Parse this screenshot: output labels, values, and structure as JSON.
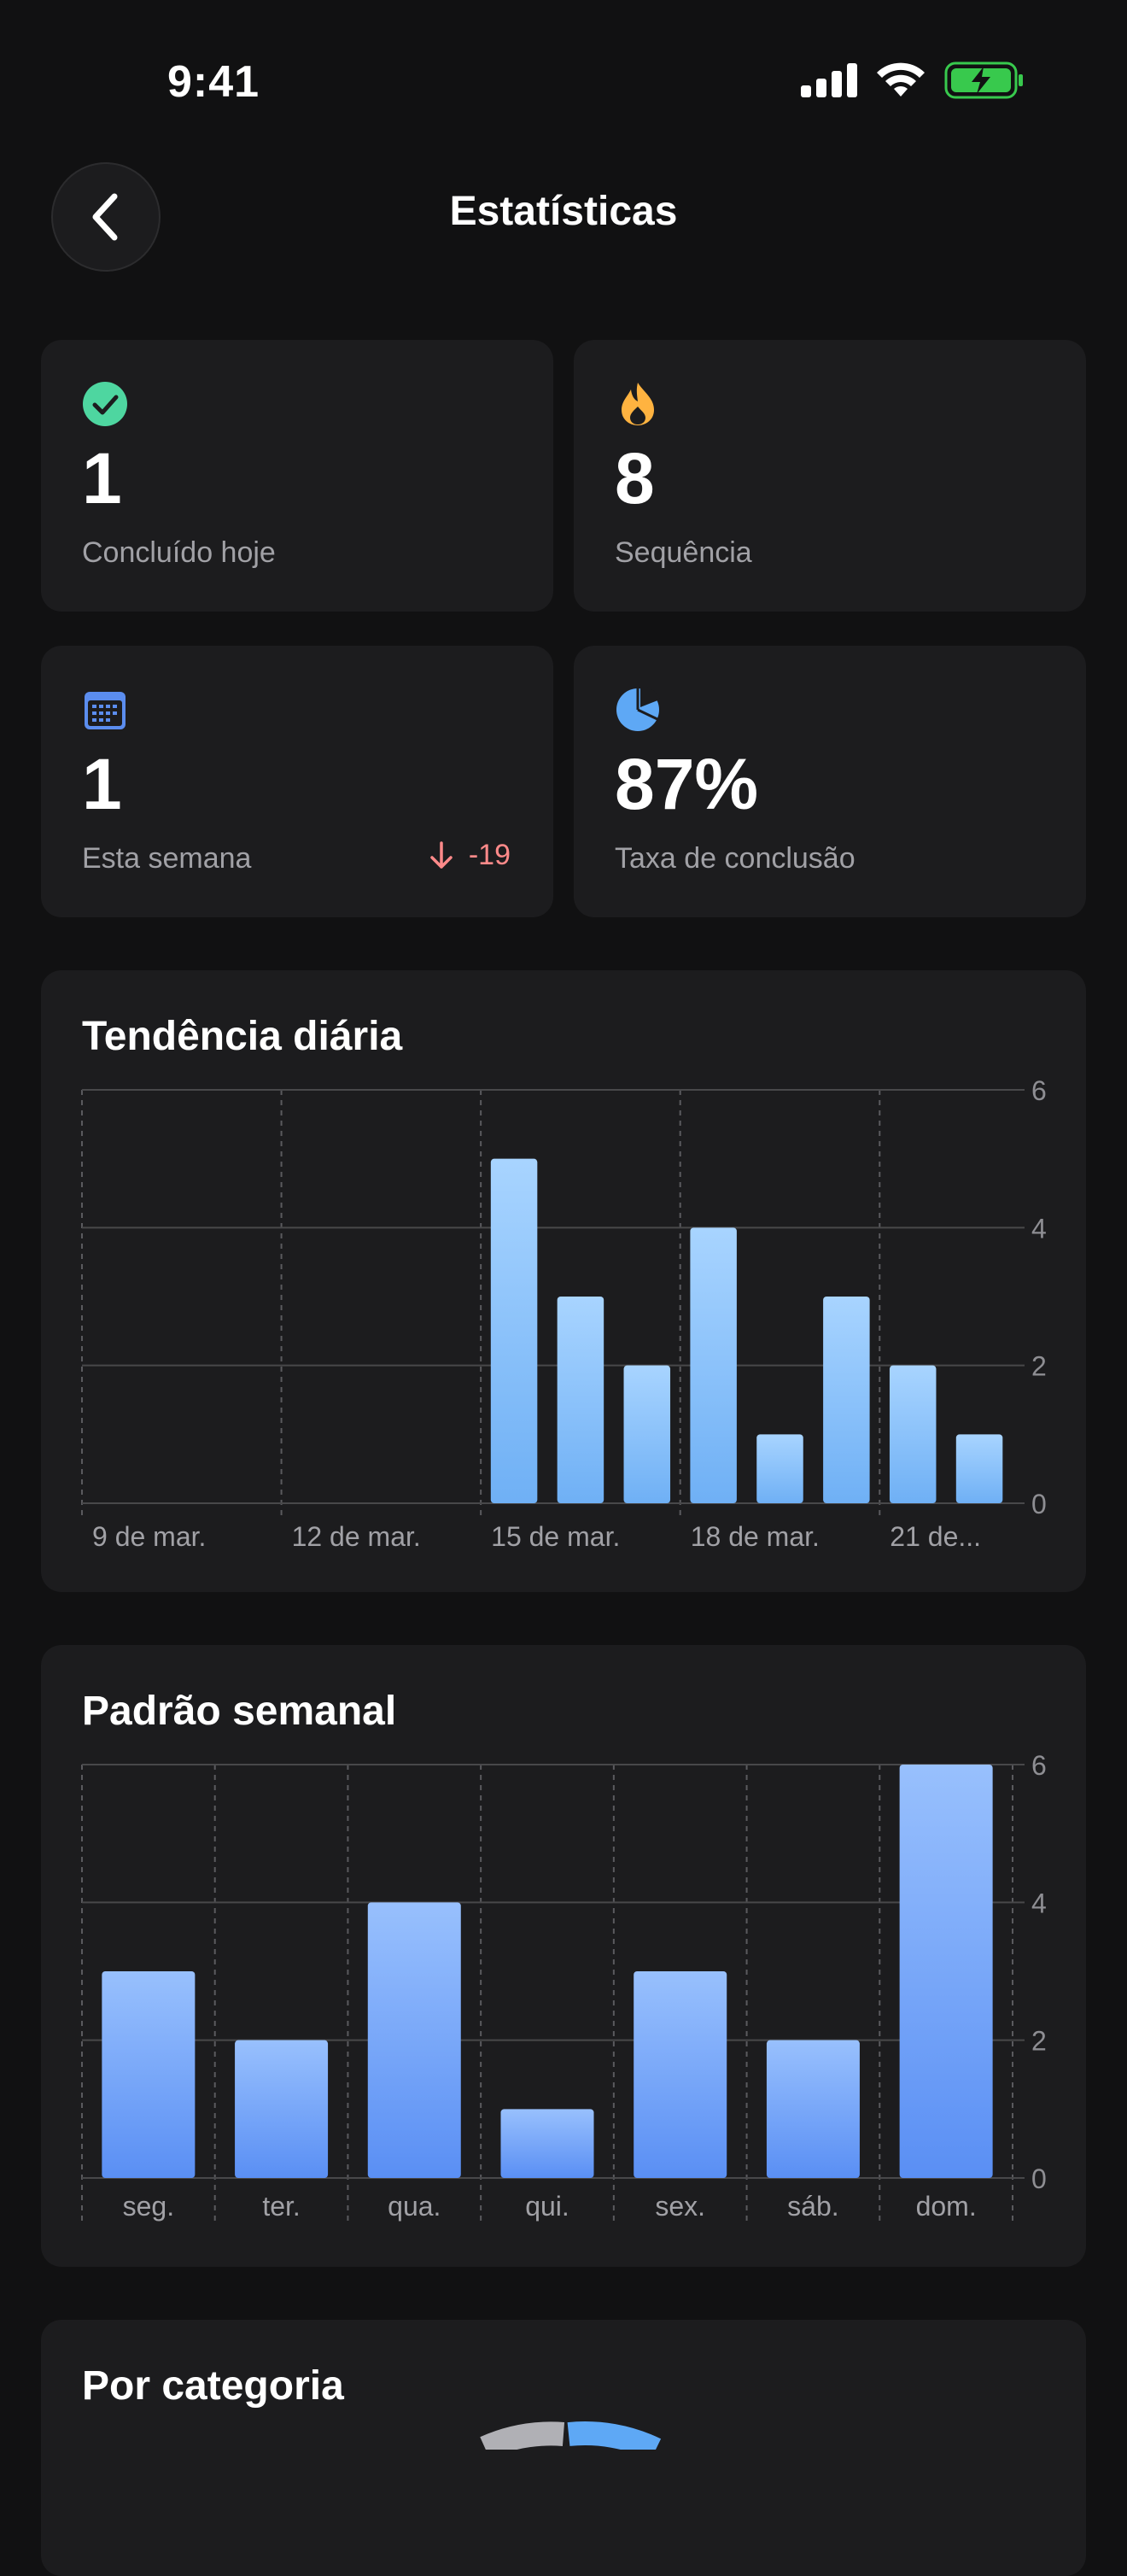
{
  "status_bar": {
    "time": "9:41"
  },
  "nav": {
    "title": "Estatísticas",
    "back_icon": "chevron-left-icon"
  },
  "stats": [
    {
      "icon": "check-circle-icon",
      "value": "1",
      "label": "Concluído hoje",
      "color": "#4ed6a0"
    },
    {
      "icon": "flame-icon",
      "value": "8",
      "label": "Sequência",
      "color": "#ffb340"
    },
    {
      "icon": "calendar-icon",
      "value": "1",
      "label": "Esta semana",
      "delta": "-19",
      "color": "#5b8def"
    },
    {
      "icon": "pie-icon",
      "value": "87%",
      "label": "Taxa de conclusão",
      "color": "#5ea8f5"
    }
  ],
  "daily": {
    "title": "Tendência diária",
    "chart_data": {
      "type": "bar",
      "x_labels": [
        "9 de mar.",
        "12 de mar.",
        "15 de mar.",
        "18 de mar.",
        "21 de..."
      ],
      "values": [
        0,
        0,
        0,
        0,
        0,
        0,
        5,
        3,
        2,
        4,
        1,
        3,
        2,
        1
      ],
      "yticks": [
        "6",
        "4",
        "2",
        "0"
      ],
      "ylim": [
        0,
        6
      ],
      "color": "#7cb8f8"
    }
  },
  "weekly": {
    "title": "Padrão semanal",
    "chart_data": {
      "type": "bar",
      "categories": [
        "seg.",
        "ter.",
        "qua.",
        "qui.",
        "sex.",
        "sáb.",
        "dom."
      ],
      "values": [
        3,
        2,
        4,
        1,
        3,
        2,
        6
      ],
      "yticks": [
        "6",
        "4",
        "2",
        "0"
      ],
      "ylim": [
        0,
        6
      ],
      "color": "#6b9ff7"
    }
  },
  "category": {
    "title": "Por categoria"
  }
}
